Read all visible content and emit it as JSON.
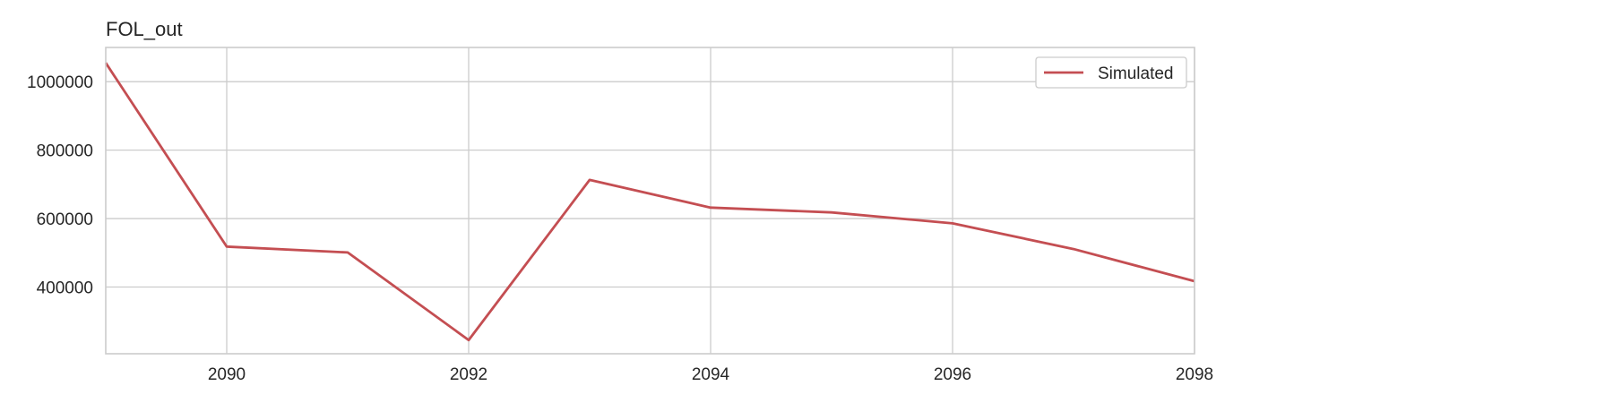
{
  "chart_data": {
    "type": "line",
    "title": "FOL_out",
    "xlabel": "",
    "ylabel": "",
    "x": [
      2089,
      2090,
      2091,
      2092,
      2093,
      2094,
      2095,
      2096,
      2097,
      2098
    ],
    "series": [
      {
        "name": "Simulated",
        "color": "#c44e52",
        "values": [
          1055000,
          518000,
          501000,
          245000,
          713000,
          632000,
          618000,
          586000,
          511000,
          417000
        ]
      }
    ],
    "xlim": [
      2089,
      2098
    ],
    "ylim": [
      205000,
      1100000
    ],
    "xticks": [
      2090,
      2092,
      2094,
      2096,
      2098
    ],
    "xtick_labels": [
      "2090",
      "2092",
      "2094",
      "2096",
      "2098"
    ],
    "yticks": [
      400000,
      600000,
      800000,
      1000000
    ],
    "ytick_labels": [
      "400000",
      "600000",
      "800000",
      "1000000"
    ],
    "grid": true,
    "legend_position": "top-right",
    "colors": {
      "grid": "#cccccc",
      "frame": "#cccccc",
      "text": "#262626",
      "background": "#ffffff"
    }
  }
}
